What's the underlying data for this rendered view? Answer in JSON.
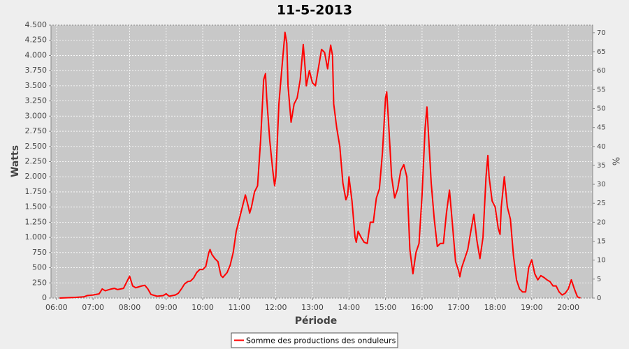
{
  "chart_data": {
    "type": "line",
    "title": "11-5-2013",
    "x_label": "Période",
    "y_label": "Watts",
    "y2_label": "%",
    "x": [
      "06:05",
      "06:30",
      "06:45",
      "06:50",
      "07:00",
      "07:10",
      "07:15",
      "07:20",
      "07:30",
      "07:35",
      "07:40",
      "07:50",
      "08:00",
      "08:05",
      "08:10",
      "08:20",
      "08:25",
      "08:30",
      "08:35",
      "08:45",
      "08:55",
      "09:00",
      "09:05",
      "09:15",
      "09:20",
      "09:25",
      "09:30",
      "09:35",
      "09:40",
      "09:45",
      "09:50",
      "09:55",
      "10:00",
      "10:05",
      "10:10",
      "10:12",
      "10:15",
      "10:20",
      "10:25",
      "10:30",
      "10:33",
      "10:40",
      "10:45",
      "10:50",
      "10:55",
      "11:00",
      "11:05",
      "11:10",
      "11:15",
      "11:17",
      "11:20",
      "11:25",
      "11:30",
      "11:35",
      "11:40",
      "11:43",
      "11:45",
      "11:50",
      "11:55",
      "11:58",
      "12:00",
      "12:05",
      "12:10",
      "12:15",
      "12:18",
      "12:20",
      "12:25",
      "12:30",
      "12:35",
      "12:40",
      "12:45",
      "12:48",
      "12:50",
      "12:55",
      "13:00",
      "13:05",
      "13:10",
      "13:15",
      "13:20",
      "13:25",
      "13:30",
      "13:33",
      "13:35",
      "13:40",
      "13:45",
      "13:50",
      "13:55",
      "13:58",
      "14:00",
      "14:05",
      "14:10",
      "14:12",
      "14:15",
      "14:20",
      "14:25",
      "14:30",
      "14:35",
      "14:40",
      "14:45",
      "14:50",
      "14:55",
      "15:00",
      "15:02",
      "15:05",
      "15:10",
      "15:15",
      "15:20",
      "15:25",
      "15:30",
      "15:35",
      "15:40",
      "15:45",
      "15:50",
      "15:55",
      "16:00",
      "16:05",
      "16:08",
      "16:10",
      "16:15",
      "16:20",
      "16:25",
      "16:30",
      "16:35",
      "16:40",
      "16:45",
      "16:50",
      "16:55",
      "17:00",
      "17:02",
      "17:05",
      "17:10",
      "17:15",
      "17:20",
      "17:25",
      "17:30",
      "17:35",
      "17:40",
      "17:45",
      "17:48",
      "17:50",
      "17:55",
      "18:00",
      "18:05",
      "18:08",
      "18:10",
      "18:15",
      "18:20",
      "18:25",
      "18:30",
      "18:35",
      "18:40",
      "18:45",
      "18:50",
      "18:55",
      "19:00",
      "19:05",
      "19:10",
      "19:15",
      "19:20",
      "19:25",
      "19:30",
      "19:35",
      "19:40",
      "19:45",
      "19:50",
      "19:55",
      "20:00",
      "20:05",
      "20:10",
      "20:15",
      "20:20"
    ],
    "series": [
      {
        "name": "Somme des productions des onduleurs",
        "color": "#ff0000",
        "values": [
          0,
          10,
          20,
          40,
          50,
          70,
          150,
          120,
          150,
          160,
          140,
          160,
          360,
          200,
          170,
          200,
          210,
          150,
          60,
          30,
          40,
          70,
          30,
          50,
          80,
          150,
          230,
          270,
          280,
          330,
          420,
          470,
          470,
          520,
          750,
          800,
          720,
          650,
          600,
          370,
          340,
          420,
          540,
          750,
          1100,
          1300,
          1500,
          1700,
          1500,
          1400,
          1500,
          1750,
          1850,
          2600,
          3600,
          3700,
          3300,
          2600,
          2100,
          1850,
          2000,
          3200,
          3800,
          4380,
          4200,
          3500,
          2900,
          3200,
          3300,
          3600,
          4180,
          3800,
          3500,
          3750,
          3550,
          3500,
          3800,
          4100,
          4050,
          3780,
          4170,
          4000,
          3200,
          2800,
          2500,
          1900,
          1620,
          1700,
          2000,
          1600,
          1000,
          920,
          1100,
          1000,
          920,
          900,
          1250,
          1250,
          1650,
          1800,
          2400,
          3300,
          3400,
          2900,
          2000,
          1650,
          1800,
          2100,
          2200,
          2000,
          800,
          400,
          750,
          900,
          1700,
          2800,
          3150,
          2800,
          1900,
          1300,
          850,
          900,
          900,
          1400,
          1780,
          1200,
          600,
          450,
          350,
          500,
          650,
          800,
          1100,
          1380,
          950,
          650,
          1000,
          2000,
          2350,
          2000,
          1600,
          1500,
          1150,
          1050,
          1500,
          2000,
          1500,
          1300,
          700,
          300,
          150,
          100,
          100,
          500,
          630,
          400,
          300,
          370,
          340,
          300,
          270,
          200,
          200,
          100,
          50,
          80,
          150,
          300,
          150,
          20,
          0
        ]
      }
    ],
    "xlim": [
      "05:51",
      "20:40"
    ],
    "xticks": [
      "06:00",
      "07:00",
      "08:00",
      "09:00",
      "10:00",
      "11:00",
      "12:00",
      "13:00",
      "14:00",
      "15:00",
      "16:00",
      "17:00",
      "18:00",
      "19:00",
      "20:00"
    ],
    "ylim": [
      0,
      4500
    ],
    "yticks": [
      0,
      250,
      500,
      750,
      {
        "value": 1000,
        "label": "1.000"
      },
      {
        "value": 1250,
        "label": "1.250"
      },
      {
        "value": 1500,
        "label": "1.500"
      },
      {
        "value": 1750,
        "label": "1.750"
      },
      {
        "value": 2000,
        "label": "2.000"
      },
      {
        "value": 2250,
        "label": "2.250"
      },
      {
        "value": 2500,
        "label": "2.500"
      },
      {
        "value": 2750,
        "label": "2.750"
      },
      {
        "value": 3000,
        "label": "3.000"
      },
      {
        "value": 3250,
        "label": "3.250"
      },
      {
        "value": 3500,
        "label": "3.500"
      },
      {
        "value": 3750,
        "label": "3.750"
      },
      {
        "value": 4000,
        "label": "4.000"
      },
      {
        "value": 4250,
        "label": "4.250"
      },
      {
        "value": 4500,
        "label": "4.500"
      }
    ],
    "y2lim": [
      0,
      72
    ],
    "y2ticks": [
      0,
      5,
      10,
      15,
      20,
      25,
      30,
      35,
      40,
      45,
      50,
      55,
      60,
      65,
      70
    ],
    "grid": true,
    "legend": "bottom"
  }
}
